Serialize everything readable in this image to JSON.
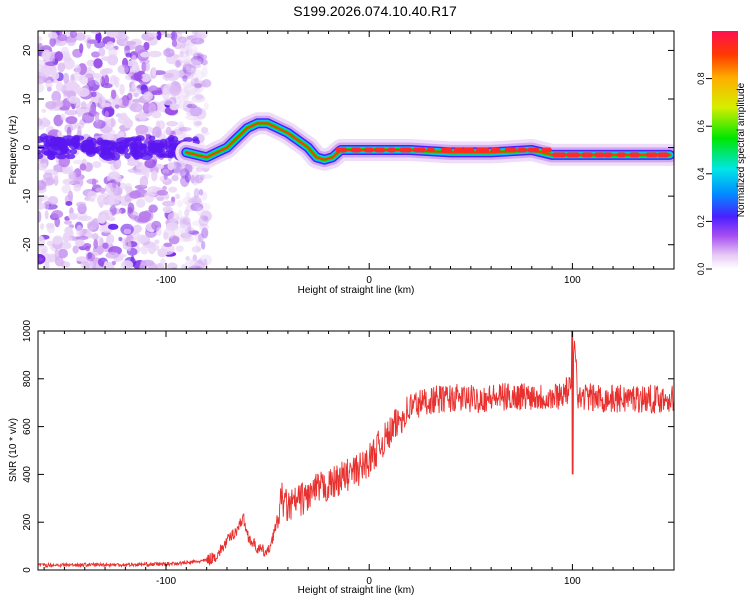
{
  "title": "S199.2026.074.10.40.R17",
  "colors": {
    "signal": "#e8302e",
    "axis": "#000000"
  },
  "chart_data": [
    {
      "type": "heatmap",
      "xlabel": "Height of straight line (km)",
      "ylabel": "Frequency (Hz)",
      "xlim": [
        -163,
        150
      ],
      "ylim": [
        -25,
        24
      ],
      "xticks": [
        -100,
        0,
        100
      ],
      "yticks": [
        20,
        10,
        0,
        -10,
        -20
      ],
      "colorbar": {
        "label": "Normalized spectral amplitude",
        "range": [
          0,
          1
        ],
        "ticks": [
          0.0,
          0.2,
          0.4,
          0.6,
          0.8
        ]
      },
      "ridge": [
        {
          "x": -90,
          "y": -1
        },
        {
          "x": -80,
          "y": -2
        },
        {
          "x": -75,
          "y": -1
        },
        {
          "x": -70,
          "y": 0
        },
        {
          "x": -65,
          "y": 2
        },
        {
          "x": -60,
          "y": 4
        },
        {
          "x": -55,
          "y": 5
        },
        {
          "x": -50,
          "y": 5
        },
        {
          "x": -45,
          "y": 4
        },
        {
          "x": -40,
          "y": 3
        },
        {
          "x": -35,
          "y": 1.5
        },
        {
          "x": -30,
          "y": 0
        },
        {
          "x": -26,
          "y": -2
        },
        {
          "x": -22,
          "y": -2.5
        },
        {
          "x": -18,
          "y": -2
        },
        {
          "x": -14,
          "y": -0.5
        },
        {
          "x": -10,
          "y": -0.5
        },
        {
          "x": 0,
          "y": -0.5
        },
        {
          "x": 20,
          "y": -0.5
        },
        {
          "x": 40,
          "y": -1
        },
        {
          "x": 60,
          "y": -1
        },
        {
          "x": 80,
          "y": -0.5
        },
        {
          "x": 90,
          "y": -1.5
        },
        {
          "x": 100,
          "y": -1.5
        },
        {
          "x": 110,
          "y": -1.5
        },
        {
          "x": 130,
          "y": -1.5
        },
        {
          "x": 148,
          "y": -1.5
        }
      ]
    },
    {
      "type": "line",
      "xlabel": "Height of straight line (km)",
      "ylabel": "SNR (10 * v/v)",
      "xlim": [
        -163,
        150
      ],
      "ylim": [
        0,
        1000
      ],
      "xticks": [
        -100,
        0,
        100
      ],
      "yticks": [
        0,
        200,
        400,
        600,
        800,
        1000
      ],
      "series": [
        {
          "name": "SNR",
          "x": [
            -163,
            -140,
            -120,
            -100,
            -90,
            -80,
            -75,
            -70,
            -65,
            -62,
            -60,
            -58,
            -55,
            -50,
            -46,
            -43,
            -40,
            -35,
            -30,
            -25,
            -20,
            -15,
            -10,
            -5,
            0,
            5,
            10,
            15,
            20,
            25,
            30,
            40,
            50,
            60,
            70,
            80,
            90,
            95,
            100,
            101,
            103,
            105,
            110,
            120,
            130,
            140,
            150
          ],
          "values": [
            20,
            22,
            22,
            25,
            30,
            40,
            60,
            120,
            170,
            220,
            150,
            120,
            90,
            70,
            180,
            300,
            260,
            290,
            310,
            340,
            350,
            380,
            400,
            420,
            460,
            520,
            570,
            630,
            680,
            700,
            710,
            720,
            715,
            720,
            725,
            730,
            720,
            740,
            760,
            1000,
            700,
            730,
            720,
            715,
            720,
            715,
            720
          ]
        }
      ]
    }
  ]
}
